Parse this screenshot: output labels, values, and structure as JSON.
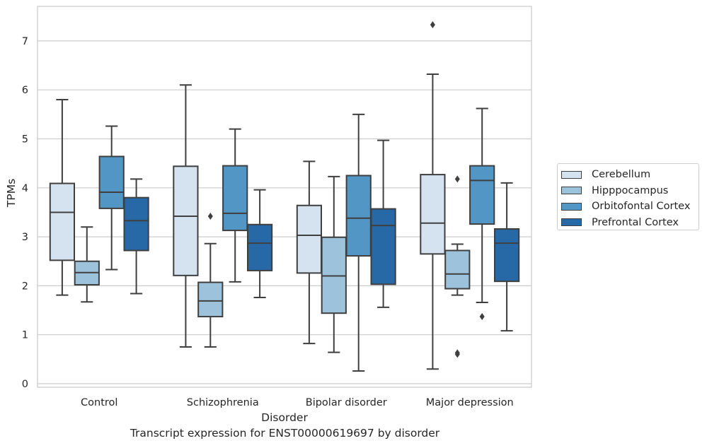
{
  "caption": "Transcript expression for ENST00000619697 by disorder",
  "chart_data": {
    "type": "boxplot",
    "title": "",
    "xlabel": "Disorder",
    "ylabel": "TPMs",
    "ylim": [
      -0.08,
      7.7
    ],
    "yticks": [
      0,
      1,
      2,
      3,
      4,
      5,
      6,
      7
    ],
    "grid": true,
    "legend_position": "right",
    "categories": [
      "Control",
      "Schizophrenia",
      "Bipolar disorder",
      "Major depression"
    ],
    "series": [
      {
        "name": "Cerebellum",
        "color": "#d5e3f1",
        "boxes": [
          {
            "whisker_low": 1.81,
            "q1": 2.52,
            "median": 3.5,
            "q3": 4.09,
            "whisker_high": 5.8,
            "outliers": []
          },
          {
            "whisker_low": 0.75,
            "q1": 2.21,
            "median": 3.42,
            "q3": 4.44,
            "whisker_high": 6.1,
            "outliers": []
          },
          {
            "whisker_low": 0.82,
            "q1": 2.26,
            "median": 3.03,
            "q3": 3.64,
            "whisker_high": 4.54,
            "outliers": []
          },
          {
            "whisker_low": 0.3,
            "q1": 2.65,
            "median": 3.28,
            "q3": 4.27,
            "whisker_high": 6.32,
            "outliers": [
              7.33
            ]
          }
        ]
      },
      {
        "name": "Hipppocampus",
        "color": "#9dc3dc",
        "boxes": [
          {
            "whisker_low": 1.67,
            "q1": 2.02,
            "median": 2.27,
            "q3": 2.5,
            "whisker_high": 3.2,
            "outliers": []
          },
          {
            "whisker_low": 0.75,
            "q1": 1.37,
            "median": 1.69,
            "q3": 2.07,
            "whisker_high": 2.86,
            "outliers": [
              3.42
            ]
          },
          {
            "whisker_low": 0.64,
            "q1": 1.44,
            "median": 2.2,
            "q3": 2.99,
            "whisker_high": 4.23,
            "outliers": []
          },
          {
            "whisker_low": 1.81,
            "q1": 1.94,
            "median": 2.24,
            "q3": 2.72,
            "whisker_high": 2.85,
            "outliers": [
              4.18,
              0.63,
              0.6
            ]
          }
        ]
      },
      {
        "name": "Orbitofontal Cortex",
        "color": "#5296c5",
        "boxes": [
          {
            "whisker_low": 2.33,
            "q1": 3.58,
            "median": 3.91,
            "q3": 4.64,
            "whisker_high": 5.26,
            "outliers": []
          },
          {
            "whisker_low": 2.08,
            "q1": 3.13,
            "median": 3.48,
            "q3": 4.45,
            "whisker_high": 5.2,
            "outliers": []
          },
          {
            "whisker_low": 0.26,
            "q1": 2.61,
            "median": 3.38,
            "q3": 4.25,
            "whisker_high": 5.5,
            "outliers": []
          },
          {
            "whisker_low": 1.66,
            "q1": 3.26,
            "median": 4.15,
            "q3": 4.45,
            "whisker_high": 5.62,
            "outliers": [
              1.37
            ]
          }
        ]
      },
      {
        "name": "Prefrontal Cortex",
        "color": "#2768a6",
        "boxes": [
          {
            "whisker_low": 1.84,
            "q1": 2.72,
            "median": 3.33,
            "q3": 3.8,
            "whisker_high": 4.18,
            "outliers": []
          },
          {
            "whisker_low": 1.76,
            "q1": 2.31,
            "median": 2.87,
            "q3": 3.25,
            "whisker_high": 3.96,
            "outliers": []
          },
          {
            "whisker_low": 1.56,
            "q1": 2.03,
            "median": 3.23,
            "q3": 3.57,
            "whisker_high": 4.97,
            "outliers": []
          },
          {
            "whisker_low": 1.08,
            "q1": 2.09,
            "median": 2.87,
            "q3": 3.16,
            "whisker_high": 4.1,
            "outliers": []
          }
        ]
      }
    ]
  }
}
